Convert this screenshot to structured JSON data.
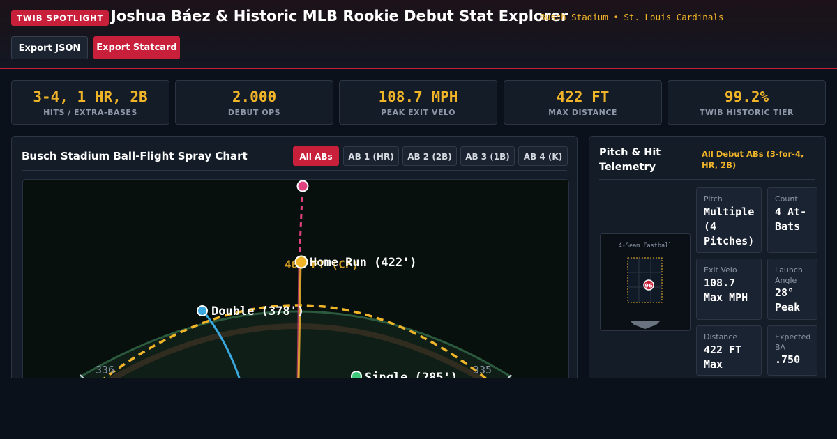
{
  "header": {
    "badge": "TWIB SPOTLIGHT",
    "title": "Joshua Báez & Historic MLB Rookie Debut Stat Explorer",
    "subtitle": "Busch Stadium • St. Louis Cardinals",
    "buttons": {
      "export_json": "Export JSON",
      "export_statcard": "Export Statcard"
    }
  },
  "stats": [
    {
      "value": "3-4, 1 HR, 2B",
      "label": "HITS / EXTRA-BASES"
    },
    {
      "value": "2.000",
      "label": "DEBUT OPS"
    },
    {
      "value": "108.7 MPH",
      "label": "PEAK EXIT VELO"
    },
    {
      "value": "422 FT",
      "label": "MAX DISTANCE"
    },
    {
      "value": "99.2%",
      "label": "TWIB HISTORIC TIER"
    }
  ],
  "spray": {
    "title": "Busch Stadium Ball-Flight Spray Chart",
    "tabs": [
      "All ABs",
      "AB 1 (HR)",
      "AB 2 (2B)",
      "AB 3 (1B)",
      "AB 4 (K)"
    ],
    "active_tab": "All ABs",
    "wall_labels": {
      "center": "400 FT (CF)",
      "left": "336",
      "right": "335"
    },
    "hits": [
      {
        "label": "Home Run (422')",
        "color": "#f0b429"
      },
      {
        "label": "Double (378')",
        "color": "#3ba9e0"
      },
      {
        "label": "Single (285')",
        "color": "#3cc97a"
      }
    ],
    "foul_marker_color": "#e0437f"
  },
  "telemetry": {
    "title": "Pitch & Hit Telemetry",
    "subtitle": "All Debut ABs (3-for-4, HR, 2B)",
    "zone": {
      "caption": "4-Seam Fastball",
      "pitch_speed": "96"
    },
    "cells": [
      {
        "label": "Pitch",
        "value": "Multiple (4 Pitches)"
      },
      {
        "label": "Count",
        "value": "4 At-Bats"
      },
      {
        "label": "Exit Velo",
        "value": "108.7 Max MPH"
      },
      {
        "label": "Launch Angle",
        "value": "28° Peak"
      },
      {
        "label": "Distance",
        "value": "422 FT Max"
      },
      {
        "label": "Expected BA",
        "value": ".750"
      }
    ]
  }
}
